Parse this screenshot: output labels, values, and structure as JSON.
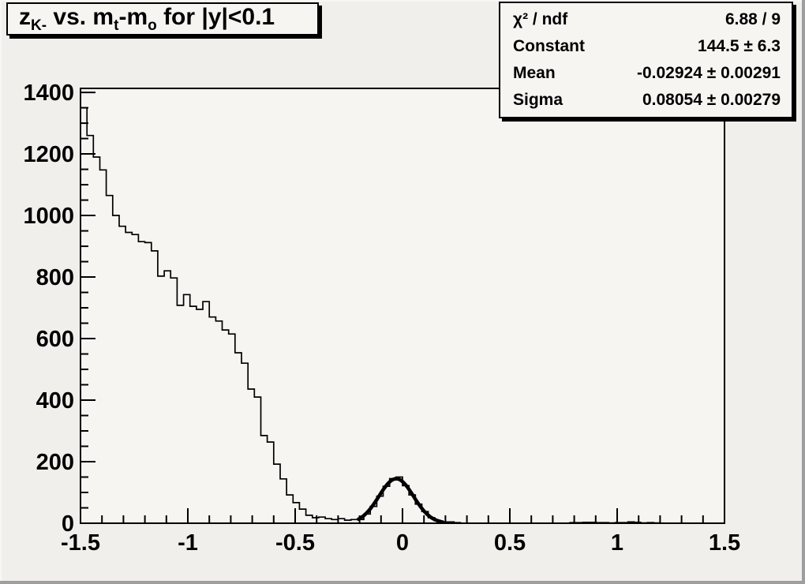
{
  "colors": {
    "canvas_bg": "#f0efec",
    "plot_bg": "#f6f5f2",
    "axis": "#000000",
    "hist_line": "#000000",
    "fit_line": "#000000",
    "text": "#000000"
  },
  "title": {
    "parts": [
      "z",
      "K-",
      " vs. m",
      "t",
      "-m",
      "o",
      " for |y|<0.1"
    ]
  },
  "stats": {
    "rows": [
      {
        "label": "χ² / ndf",
        "value": "6.88 / 9"
      },
      {
        "label": "Constant",
        "value": "144.5 ± 6.3"
      },
      {
        "label": "Mean",
        "value": "-0.02924 ± 0.00291"
      },
      {
        "label": "Sigma",
        "value": "0.08054 ± 0.00279"
      }
    ]
  },
  "chart_data": {
    "type": "bar",
    "subtype": "root-histogram-with-gaussian-fit",
    "title": "z_{K-} vs. m_t-m_o for |y|<0.1",
    "xlabel": "",
    "ylabel": "",
    "xlim": [
      -1.5,
      1.5
    ],
    "ylim": [
      0,
      1413
    ],
    "grid": false,
    "legend_position": "none",
    "axes": {
      "x": {
        "major_ticks": [
          -1.5,
          -1,
          -0.5,
          0,
          0.5,
          1,
          1.5
        ],
        "tick_labels": [
          "-1.5",
          "-1",
          "-0.5",
          "0",
          "0.5",
          "1",
          "1.5"
        ],
        "minor_step": 0.1
      },
      "y": {
        "major_ticks": [
          0,
          200,
          400,
          600,
          800,
          1000,
          1200,
          1400
        ],
        "tick_labels": [
          "0",
          "200",
          "400",
          "600",
          "800",
          "1000",
          "1200",
          "1400"
        ],
        "minor_step": 50
      }
    },
    "bins": {
      "start": -1.5,
      "width": 0.03,
      "values": [
        1350,
        1260,
        1190,
        1148,
        1065,
        1000,
        965,
        945,
        938,
        915,
        912,
        885,
        803,
        820,
        797,
        708,
        743,
        705,
        695,
        720,
        670,
        657,
        628,
        615,
        554,
        520,
        436,
        410,
        285,
        264,
        192,
        144,
        92,
        67,
        46,
        26,
        18,
        20,
        15,
        12,
        15,
        10,
        12,
        12,
        30,
        55,
        88,
        120,
        145,
        150,
        122,
        92,
        62,
        38,
        18,
        8,
        4,
        4,
        2,
        0,
        0,
        0,
        0,
        0,
        0,
        0,
        0,
        0,
        0,
        0,
        0,
        0,
        0,
        0,
        0,
        0,
        2,
        2,
        3,
        3,
        2,
        2,
        1,
        2,
        2,
        4,
        3,
        1,
        2,
        1,
        0,
        0,
        0,
        0,
        0,
        0,
        0,
        0,
        0,
        0
      ]
    },
    "fit": {
      "type": "gaussian",
      "chi2_ndf": "6.88 / 9",
      "constant": 144.5,
      "constant_err": 6.3,
      "mean": -0.02924,
      "mean_err": 0.00291,
      "sigma": 0.08054,
      "sigma_err": 0.00279,
      "draw_range": [
        -0.205,
        0.19
      ]
    }
  }
}
